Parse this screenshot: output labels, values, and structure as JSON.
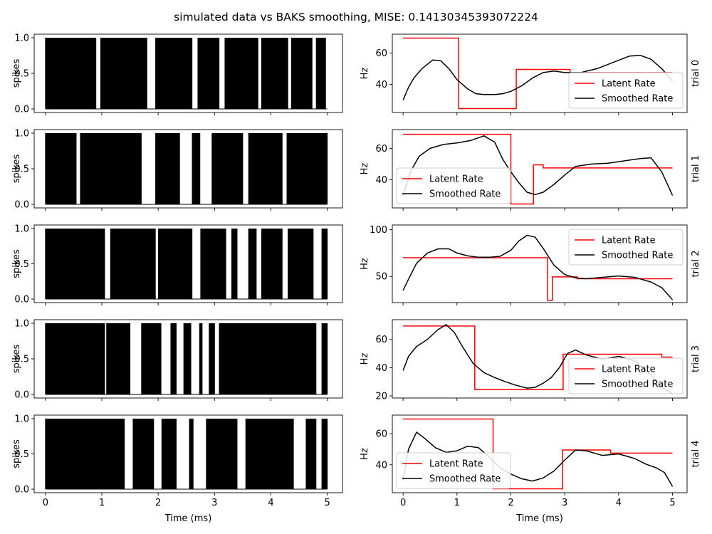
{
  "suptitle": "simulated data vs BAKS smoothing, MISE: 0.14130345393072224",
  "colors": {
    "latent": "#ff0000",
    "smoothed": "#000000",
    "spikes": "#000000"
  },
  "chart_data": [
    {
      "type": "line",
      "title": "simulated data vs BAKS smoothing, MISE: 0.14130345393072224",
      "left_panels": {
        "type": "line",
        "ylabel": "spikes",
        "xlabel": "Time (ms)",
        "xlim": [
          -0.2,
          5.27
        ],
        "ylim": [
          -0.05,
          1.05
        ],
        "xticks": [
          0,
          1,
          2,
          3,
          4,
          5
        ],
        "yticks": [
          0.0,
          0.5,
          1.0
        ],
        "ytick_labels": [
          "0.0",
          "0.5",
          "1.0"
        ],
        "trials": [
          {
            "trial": 0,
            "gaps": [
              [
                0.9,
                0.98
              ],
              [
                1.8,
                1.95
              ],
              [
                2.6,
                2.7
              ],
              [
                3.08,
                3.18
              ],
              [
                3.77,
                3.83
              ],
              [
                4.3,
                4.36
              ],
              [
                4.73,
                4.8
              ],
              [
                4.97,
                5.0
              ]
            ]
          },
          {
            "trial": 1,
            "gaps": [
              [
                0.55,
                0.62
              ],
              [
                1.7,
                1.95
              ],
              [
                2.38,
                2.6
              ],
              [
                2.74,
                2.95
              ],
              [
                3.5,
                3.6
              ],
              [
                4.2,
                4.28
              ]
            ]
          },
          {
            "trial": 2,
            "gaps": [
              [
                1.05,
                1.15
              ],
              [
                1.95,
                2.0
              ],
              [
                2.6,
                2.75
              ],
              [
                3.2,
                3.3
              ],
              [
                3.4,
                3.6
              ],
              [
                3.74,
                3.83
              ],
              [
                4.2,
                4.3
              ],
              [
                4.75,
                4.9
              ]
            ]
          },
          {
            "trial": 3,
            "gaps": [
              [
                1.05,
                1.08
              ],
              [
                1.5,
                1.7
              ],
              [
                2.05,
                2.22
              ],
              [
                2.32,
                2.45
              ],
              [
                2.58,
                2.73
              ],
              [
                2.78,
                2.9
              ],
              [
                3.0,
                3.08
              ],
              [
                4.8,
                4.9
              ]
            ]
          },
          {
            "trial": 4,
            "gaps": [
              [
                1.4,
                1.55
              ],
              [
                1.92,
                2.06
              ],
              [
                2.32,
                2.55
              ],
              [
                2.62,
                2.85
              ],
              [
                3.4,
                3.55
              ],
              [
                4.4,
                4.62
              ],
              [
                4.8,
                4.9
              ]
            ]
          }
        ]
      },
      "right_panels": [
        {
          "trial_label": "trial 0",
          "ylabel": "Hz",
          "ylim": [
            22,
            72
          ],
          "yticks": [
            40,
            60
          ],
          "legend_loc": "lower right",
          "latent": {
            "x": [
              0,
              1.03,
              1.03,
              2.1,
              2.1,
              3.1,
              3.1,
              5
            ],
            "y": [
              69.5,
              69.5,
              24.5,
              24.5,
              49.5,
              49.5,
              47.5,
              47.5
            ]
          },
          "smoothed": {
            "x": [
              0,
              0.1,
              0.2,
              0.35,
              0.55,
              0.7,
              0.85,
              1.0,
              1.2,
              1.35,
              1.5,
              1.7,
              1.85,
              2.0,
              2.2,
              2.4,
              2.6,
              2.8,
              3.0,
              3.3,
              3.6,
              3.9,
              4.2,
              4.4,
              4.6,
              4.8,
              5.0
            ],
            "y": [
              30,
              38,
              44,
              50,
              55.5,
              55,
              50,
              43,
              37,
              34,
              33.5,
              33.5,
              34,
              35.5,
              39,
              44,
              47.5,
              48.5,
              47.5,
              47.5,
              50,
              54,
              58,
              58.5,
              56,
              50,
              42
            ]
          }
        },
        {
          "trial_label": "trial 1",
          "ylabel": "Hz",
          "ylim": [
            22,
            72
          ],
          "yticks": [
            40,
            60
          ],
          "legend_loc": "lower left",
          "latent": {
            "x": [
              0,
              2.0,
              2.0,
              2.42,
              2.42,
              2.6,
              2.6,
              5
            ],
            "y": [
              69,
              69,
              24.5,
              24.5,
              49.5,
              49.5,
              47.5,
              47.5
            ]
          },
          "smoothed": {
            "x": [
              0,
              0.15,
              0.3,
              0.5,
              0.75,
              1.0,
              1.25,
              1.5,
              1.7,
              1.85,
              2.0,
              2.15,
              2.3,
              2.45,
              2.6,
              2.8,
              3.0,
              3.2,
              3.5,
              3.8,
              4.1,
              4.4,
              4.6,
              4.8,
              5.0
            ],
            "y": [
              30,
              46,
              55,
              60,
              62.5,
              63.5,
              65,
              68,
              64,
              53,
              45,
              38,
              32,
              30.5,
              32,
              37,
              43,
              48.5,
              50,
              50.5,
              52,
              53.5,
              54,
              45,
              30
            ]
          }
        },
        {
          "trial_label": "trial 2",
          "ylabel": "Hz",
          "ylim": [
            22,
            105
          ],
          "yticks": [
            50,
            100
          ],
          "legend_loc": "upper right",
          "latent": {
            "x": [
              0,
              2.68,
              2.68,
              2.77,
              2.77,
              3.23,
              3.23,
              5
            ],
            "y": [
              70,
              70,
              24.5,
              24.5,
              49.5,
              49.5,
              47.5,
              47.5
            ]
          },
          "smoothed": {
            "x": [
              0,
              0.1,
              0.25,
              0.45,
              0.65,
              0.85,
              1.0,
              1.2,
              1.4,
              1.6,
              1.8,
              2.0,
              2.15,
              2.3,
              2.45,
              2.6,
              2.8,
              3.0,
              3.2,
              3.4,
              3.7,
              4.0,
              4.3,
              4.6,
              4.8,
              5.0
            ],
            "y": [
              35,
              47,
              64,
              75,
              79.5,
              79.5,
              75,
              72,
              70.5,
              70.5,
              71.5,
              78,
              88,
              94,
              92,
              80,
              62,
              52,
              48.5,
              47.5,
              49,
              50.5,
              49,
              44,
              38,
              25
            ]
          }
        },
        {
          "trial_label": "trial 3",
          "ylabel": "Hz",
          "ylim": [
            18.5,
            74
          ],
          "yticks": [
            20,
            40,
            60
          ],
          "legend_loc": "lower right",
          "latent": {
            "x": [
              0,
              1.33,
              1.33,
              2.97,
              2.97,
              4.8,
              4.8,
              5
            ],
            "y": [
              69.5,
              69.5,
              24.5,
              24.5,
              49.5,
              49.5,
              47.5,
              47.5
            ]
          },
          "smoothed": {
            "x": [
              0,
              0.1,
              0.25,
              0.45,
              0.65,
              0.8,
              0.95,
              1.1,
              1.3,
              1.5,
              1.7,
              1.9,
              2.1,
              2.3,
              2.45,
              2.6,
              2.75,
              2.9,
              3.05,
              3.2,
              3.4,
              3.7,
              4.0,
              4.3,
              4.6,
              4.8,
              5.0
            ],
            "y": [
              38,
              48,
              55,
              60,
              67,
              70.5,
              65,
              55,
              43,
              36.5,
              33,
              30,
              27.5,
              25.5,
              26,
              29,
              33,
              40,
              50,
              52.5,
              49,
              46,
              48,
              45,
              35,
              26,
              21.5
            ]
          }
        },
        {
          "trial_label": "trial 4",
          "ylabel": "Hz",
          "ylim": [
            22,
            72
          ],
          "yticks": [
            40,
            60
          ],
          "legend_loc": "lower left",
          "latent": {
            "x": [
              0,
              1.67,
              1.67,
              2.96,
              2.96,
              3.85,
              3.85,
              5
            ],
            "y": [
              69.5,
              69.5,
              24.5,
              24.5,
              49.5,
              49.5,
              47.5,
              47.5
            ]
          },
          "smoothed": {
            "x": [
              0,
              0.1,
              0.25,
              0.4,
              0.6,
              0.8,
              1.0,
              1.2,
              1.4,
              1.6,
              1.8,
              2.0,
              2.2,
              2.4,
              2.6,
              2.8,
              3.0,
              3.2,
              3.4,
              3.7,
              4.0,
              4.3,
              4.5,
              4.7,
              4.85,
              5.0
            ],
            "y": [
              30,
              50,
              61,
              57,
              51,
              48,
              49,
              52,
              51,
              45,
              38,
              34,
              31,
              29.5,
              31.5,
              36,
              43,
              49.5,
              49,
              46,
              47,
              44,
              40.5,
              38,
              35,
              26
            ]
          }
        }
      ],
      "legend": [
        "Latent Rate",
        "Smoothed Rate"
      ],
      "xlabel": "Time (ms)",
      "xlim": [
        -0.2,
        5.27
      ],
      "xticks": [
        0,
        1,
        2,
        3,
        4,
        5
      ]
    }
  ]
}
